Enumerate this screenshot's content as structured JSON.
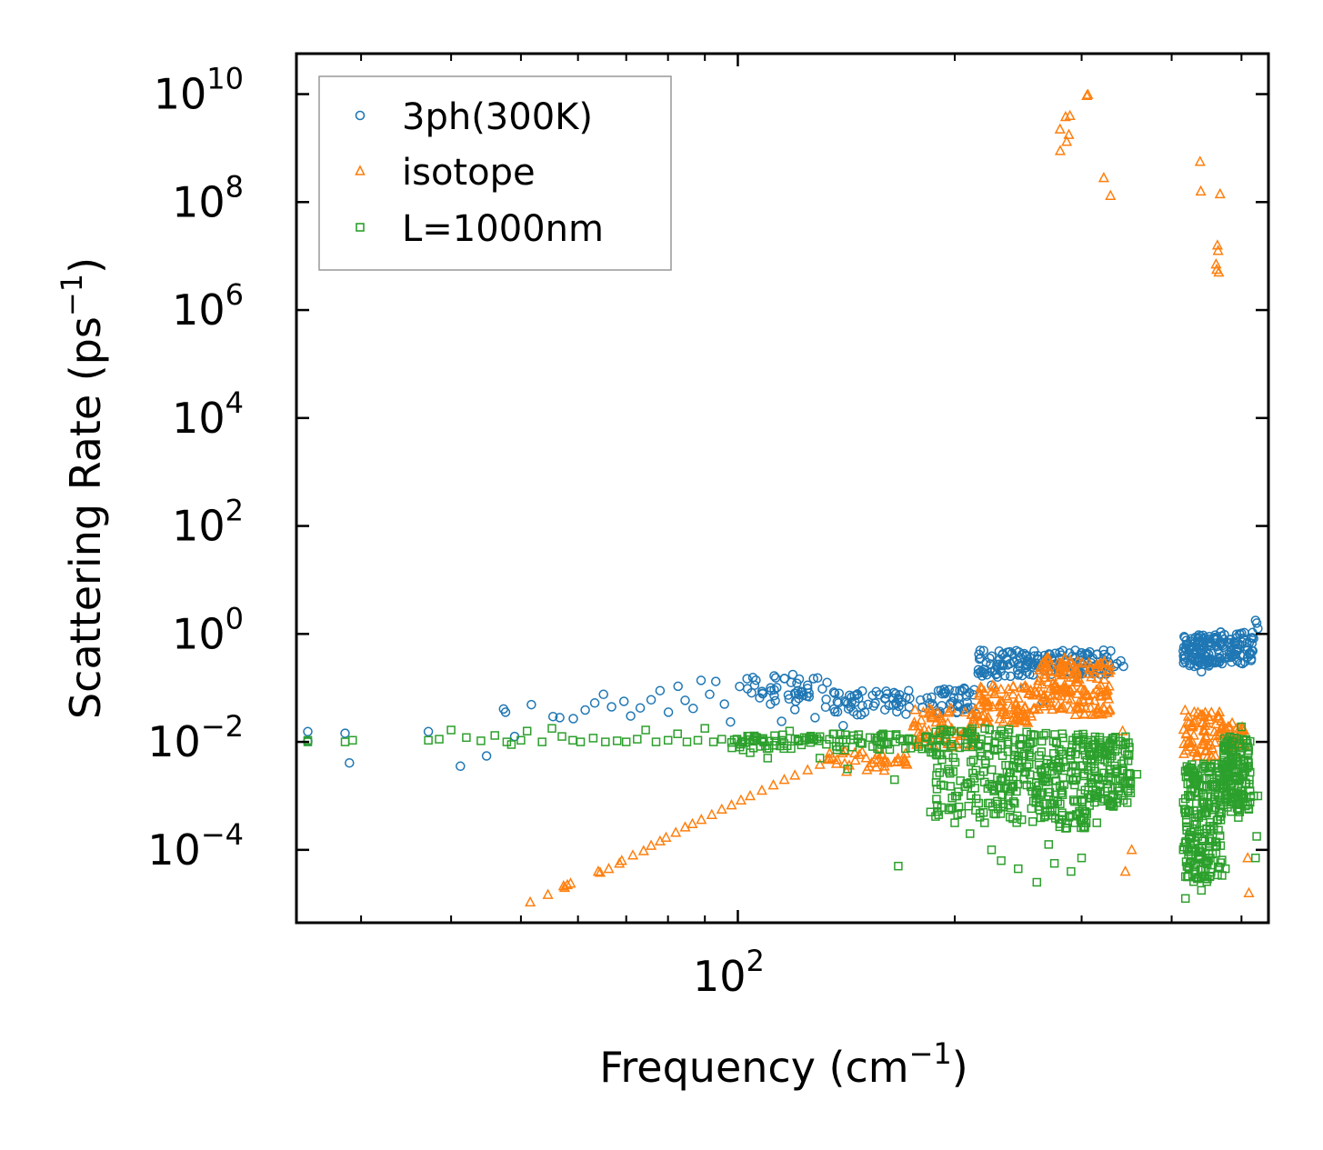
{
  "chart_data": {
    "type": "scatter",
    "title": "",
    "xlabel": "Frequency (cm",
    "xlabel_sup": "−1",
    "xlabel_tail": ")",
    "ylabel": "Scattering Rate (ps",
    "ylabel_sup": "−1",
    "ylabel_tail": ")",
    "xscale": "log",
    "yscale": "log",
    "xlim": [
      24.4,
      545
    ],
    "ylim_log10": [
      -5.35,
      10.75
    ],
    "x_major_ticks": [
      {
        "value": 100,
        "base": "10",
        "exp": "2"
      }
    ],
    "x_minor_ticks": [
      30,
      40,
      50,
      60,
      70,
      80,
      90,
      200,
      300,
      400,
      500
    ],
    "y_major_ticks": [
      {
        "log10": 10,
        "base": "10",
        "exp": "10"
      },
      {
        "log10": 8,
        "base": "10",
        "exp": "8"
      },
      {
        "log10": 6,
        "base": "10",
        "exp": "6"
      },
      {
        "log10": 4,
        "base": "10",
        "exp": "4"
      },
      {
        "log10": 2,
        "base": "10",
        "exp": "2"
      },
      {
        "log10": 0,
        "base": "10",
        "exp": "0"
      },
      {
        "log10": -2,
        "base": "10",
        "exp": "−2"
      },
      {
        "log10": -4,
        "base": "10",
        "exp": "−4"
      }
    ],
    "legend_position": "top-left",
    "series": [
      {
        "name": "3ph(300K)",
        "marker": "circle",
        "color": "#1f77b4",
        "bands": [
          {
            "x_range": [
              100,
              132
            ],
            "log_range": [
              -1.25,
              -0.75
            ],
            "count": 40
          },
          {
            "x_range": [
              132,
              185
            ],
            "log_range": [
              -1.5,
              -1.05
            ],
            "count": 60
          },
          {
            "x_range": [
              185,
              215
            ],
            "log_range": [
              -1.5,
              -1.0
            ],
            "count": 40
          },
          {
            "x_range": [
              215,
              262
            ],
            "log_range": [
              -0.8,
              -0.3
            ],
            "count": 80
          },
          {
            "x_range": [
              262,
              330
            ],
            "log_range": [
              -0.75,
              -0.3
            ],
            "count": 80
          },
          {
            "x_range": [
              415,
              455
            ],
            "log_range": [
              -0.6,
              0.0
            ],
            "count": 90
          },
          {
            "x_range": [
              455,
              520
            ],
            "log_range": [
              -0.55,
              0.05
            ],
            "count": 90
          }
        ],
        "points": [
          [
            25.3,
            -1.81
          ],
          [
            25.3,
            -1.99
          ],
          [
            28.5,
            -1.84
          ],
          [
            28.9,
            -2.39
          ],
          [
            37.2,
            -1.81
          ],
          [
            41.2,
            -2.45
          ],
          [
            44.8,
            -2.26
          ],
          [
            47.3,
            -1.39
          ],
          [
            47.6,
            -1.45
          ],
          [
            49.0,
            -1.9
          ],
          [
            51.7,
            -1.31
          ],
          [
            55.4,
            -1.53
          ],
          [
            56.6,
            -1.55
          ],
          [
            59.1,
            -1.57
          ],
          [
            61.4,
            -1.41
          ],
          [
            63.3,
            -1.28
          ],
          [
            65.1,
            -1.12
          ],
          [
            66.8,
            -1.35
          ],
          [
            69.5,
            -1.25
          ],
          [
            71.0,
            -1.52
          ],
          [
            73.2,
            -1.37
          ],
          [
            75.8,
            -1.22
          ],
          [
            78.0,
            -1.05
          ],
          [
            80.1,
            -1.45
          ],
          [
            82.6,
            -0.97
          ],
          [
            84.5,
            -1.23
          ],
          [
            86.7,
            -1.38
          ],
          [
            88.9,
            -0.86
          ],
          [
            91.4,
            -1.12
          ],
          [
            93.2,
            -0.88
          ],
          [
            95.8,
            -1.3
          ],
          [
            97.7,
            -1.63
          ],
          [
            103.0,
            -0.83
          ],
          [
            105.5,
            -0.95
          ],
          [
            108.2,
            -1.1
          ],
          [
            111.0,
            -1.3
          ],
          [
            115.0,
            -1.62
          ],
          [
            120.0,
            -1.4
          ],
          [
            125.0,
            -0.95
          ],
          [
            128.0,
            -1.55
          ],
          [
            133.0,
            -0.9
          ],
          [
            140.0,
            -1.7
          ],
          [
            150.0,
            -1.45
          ],
          [
            160.0,
            -1.2
          ],
          [
            225.0,
            -0.95
          ],
          [
            250.0,
            -1.0
          ],
          [
            265.0,
            -1.25
          ],
          [
            300.0,
            -0.35
          ],
          [
            333.0,
            -0.6
          ],
          [
            336.0,
            -0.55
          ],
          [
            340.0,
            -0.5
          ],
          [
            343.0,
            -0.6
          ],
          [
            430.0,
            -0.6
          ],
          [
            440.0,
            -0.7
          ],
          [
            470.0,
            -0.55
          ],
          [
            523.0,
            0.25
          ],
          [
            525.0,
            0.2
          ],
          [
            527.0,
            0.1
          ]
        ]
      },
      {
        "name": "isotope",
        "marker": "triangle",
        "color": "#ff7f0e",
        "bands": [
          {
            "x_range": [
              133,
              175
            ],
            "log_range": [
              -2.55,
              -2.15
            ],
            "count": 40
          },
          {
            "x_range": [
              175,
              215
            ],
            "log_range": [
              -2.1,
              -1.35
            ],
            "count": 70
          },
          {
            "x_range": [
              215,
              258
            ],
            "log_range": [
              -1.65,
              -0.95
            ],
            "count": 90
          },
          {
            "x_range": [
              258,
              290
            ],
            "log_range": [
              -1.4,
              -0.35
            ],
            "count": 90
          },
          {
            "x_range": [
              290,
              330
            ],
            "log_range": [
              -1.5,
              -0.5
            ],
            "count": 80
          },
          {
            "x_range": [
              415,
              470
            ],
            "log_range": [
              -2.3,
              -1.4
            ],
            "count": 70
          },
          {
            "x_range": [
              470,
              505
            ],
            "log_range": [
              -2.2,
              -1.65
            ],
            "count": 40
          }
        ],
        "points": [
          [
            51.5,
            -4.97
          ],
          [
            54.5,
            -4.83
          ],
          [
            57.3,
            -4.67
          ],
          [
            57.5,
            -4.7
          ],
          [
            58.0,
            -4.65
          ],
          [
            58.6,
            -4.62
          ],
          [
            64.0,
            -4.4
          ],
          [
            64.4,
            -4.42
          ],
          [
            66.2,
            -4.35
          ],
          [
            68.5,
            -4.25
          ],
          [
            69.0,
            -4.2
          ],
          [
            71.5,
            -4.1
          ],
          [
            74.0,
            -4.02
          ],
          [
            75.8,
            -3.92
          ],
          [
            78.0,
            -3.84
          ],
          [
            79.5,
            -3.77
          ],
          [
            82.0,
            -3.68
          ],
          [
            84.5,
            -3.58
          ],
          [
            86.5,
            -3.52
          ],
          [
            89.0,
            -3.44
          ],
          [
            92.0,
            -3.35
          ],
          [
            95.0,
            -3.25
          ],
          [
            98.0,
            -3.17
          ],
          [
            101.0,
            -3.08
          ],
          [
            104.0,
            -3.0
          ],
          [
            108.0,
            -2.9
          ],
          [
            112.0,
            -2.8
          ],
          [
            116.0,
            -2.7
          ],
          [
            120.0,
            -2.62
          ],
          [
            125.0,
            -2.52
          ],
          [
            130.0,
            -2.42
          ],
          [
            280.0,
            9.35
          ],
          [
            280.2,
            8.95
          ],
          [
            285.0,
            9.58
          ],
          [
            286.0,
            9.12
          ],
          [
            288.0,
            9.25
          ],
          [
            289.0,
            9.6
          ],
          [
            305.0,
            9.97
          ],
          [
            306.0,
            9.99
          ],
          [
            322.0,
            8.45
          ],
          [
            329.0,
            8.12
          ],
          [
            342.0,
            -1.8
          ],
          [
            345.0,
            -4.4
          ],
          [
            352.0,
            -4.0
          ],
          [
            438.0,
            8.75
          ],
          [
            439.0,
            8.2
          ],
          [
            461.0,
            6.85
          ],
          [
            462.0,
            6.75
          ],
          [
            463.0,
            7.2
          ],
          [
            464.0,
            7.1
          ],
          [
            465.0,
            6.7
          ],
          [
            467.0,
            8.15
          ],
          [
            510.0,
            -4.15
          ],
          [
            512.0,
            -4.8
          ]
        ]
      },
      {
        "name": "L=1000nm",
        "marker": "square",
        "color": "#2ca02c",
        "bands": [
          {
            "x_range": [
              98,
              185
            ],
            "log_range": [
              -2.15,
              -1.85
            ],
            "count": 110
          },
          {
            "x_range": [
              185,
              240
            ],
            "log_range": [
              -3.4,
              -1.75
            ],
            "count": 160
          },
          {
            "x_range": [
              240,
              305
            ],
            "log_range": [
              -3.6,
              -1.8
            ],
            "count": 200
          },
          {
            "x_range": [
              305,
              352
            ],
            "log_range": [
              -3.2,
              -1.9
            ],
            "count": 140
          },
          {
            "x_range": [
              415,
              470
            ],
            "log_range": [
              -4.6,
              -2.4
            ],
            "count": 220
          },
          {
            "x_range": [
              470,
              515
            ],
            "log_range": [
              -3.3,
              -1.9
            ],
            "count": 150
          }
        ],
        "points": [
          [
            25.3,
            -1.97
          ],
          [
            25.3,
            -2.0
          ],
          [
            28.5,
            -2.0
          ],
          [
            29.2,
            -1.97
          ],
          [
            37.2,
            -1.97
          ],
          [
            38.5,
            -1.95
          ],
          [
            40.0,
            -1.78
          ],
          [
            42.0,
            -1.92
          ],
          [
            44.0,
            -1.98
          ],
          [
            46.0,
            -1.88
          ],
          [
            47.8,
            -2.0
          ],
          [
            48.5,
            -2.05
          ],
          [
            50.0,
            -1.97
          ],
          [
            51.0,
            -1.8
          ],
          [
            53.5,
            -2.0
          ],
          [
            55.2,
            -1.75
          ],
          [
            57.0,
            -1.9
          ],
          [
            59.0,
            -1.97
          ],
          [
            60.5,
            -2.0
          ],
          [
            63.0,
            -1.93
          ],
          [
            65.5,
            -2.0
          ],
          [
            68.0,
            -1.98
          ],
          [
            70.0,
            -2.0
          ],
          [
            72.5,
            -1.95
          ],
          [
            74.5,
            -1.78
          ],
          [
            77.0,
            -2.0
          ],
          [
            80.0,
            -1.97
          ],
          [
            82.5,
            -1.85
          ],
          [
            85.0,
            -2.0
          ],
          [
            88.0,
            -1.97
          ],
          [
            90.0,
            -1.75
          ],
          [
            92.5,
            -2.0
          ],
          [
            95.0,
            -1.95
          ],
          [
            104.0,
            -2.2
          ],
          [
            110.0,
            -2.3
          ],
          [
            118.0,
            -1.8
          ],
          [
            130.0,
            -2.3
          ],
          [
            142.0,
            -2.5
          ],
          [
            165.0,
            -2.7
          ],
          [
            167.0,
            -4.3
          ],
          [
            190.0,
            -3.35
          ],
          [
            200.0,
            -3.5
          ],
          [
            210.0,
            -3.7
          ],
          [
            220.0,
            -3.5
          ],
          [
            225.0,
            -4.0
          ],
          [
            232.0,
            -4.2
          ],
          [
            245.0,
            -4.35
          ],
          [
            260.0,
            -4.6
          ],
          [
            270.0,
            -3.9
          ],
          [
            275.0,
            -4.25
          ],
          [
            285.0,
            -3.6
          ],
          [
            290.0,
            -4.4
          ],
          [
            300.0,
            -4.15
          ],
          [
            315.0,
            -3.5
          ],
          [
            331.0,
            -3.0
          ],
          [
            348.0,
            -2.35
          ],
          [
            358.0,
            -2.6
          ],
          [
            418.0,
            -4.9
          ],
          [
            440.0,
            -4.75
          ],
          [
            450.0,
            -4.2
          ],
          [
            475.0,
            -4.35
          ],
          [
            495.0,
            -3.4
          ],
          [
            500.0,
            -1.72
          ],
          [
            520.0,
            -3.0
          ],
          [
            523.0,
            -4.15
          ],
          [
            525.0,
            -3.75
          ],
          [
            527.0,
            -3.0
          ]
        ]
      }
    ]
  }
}
